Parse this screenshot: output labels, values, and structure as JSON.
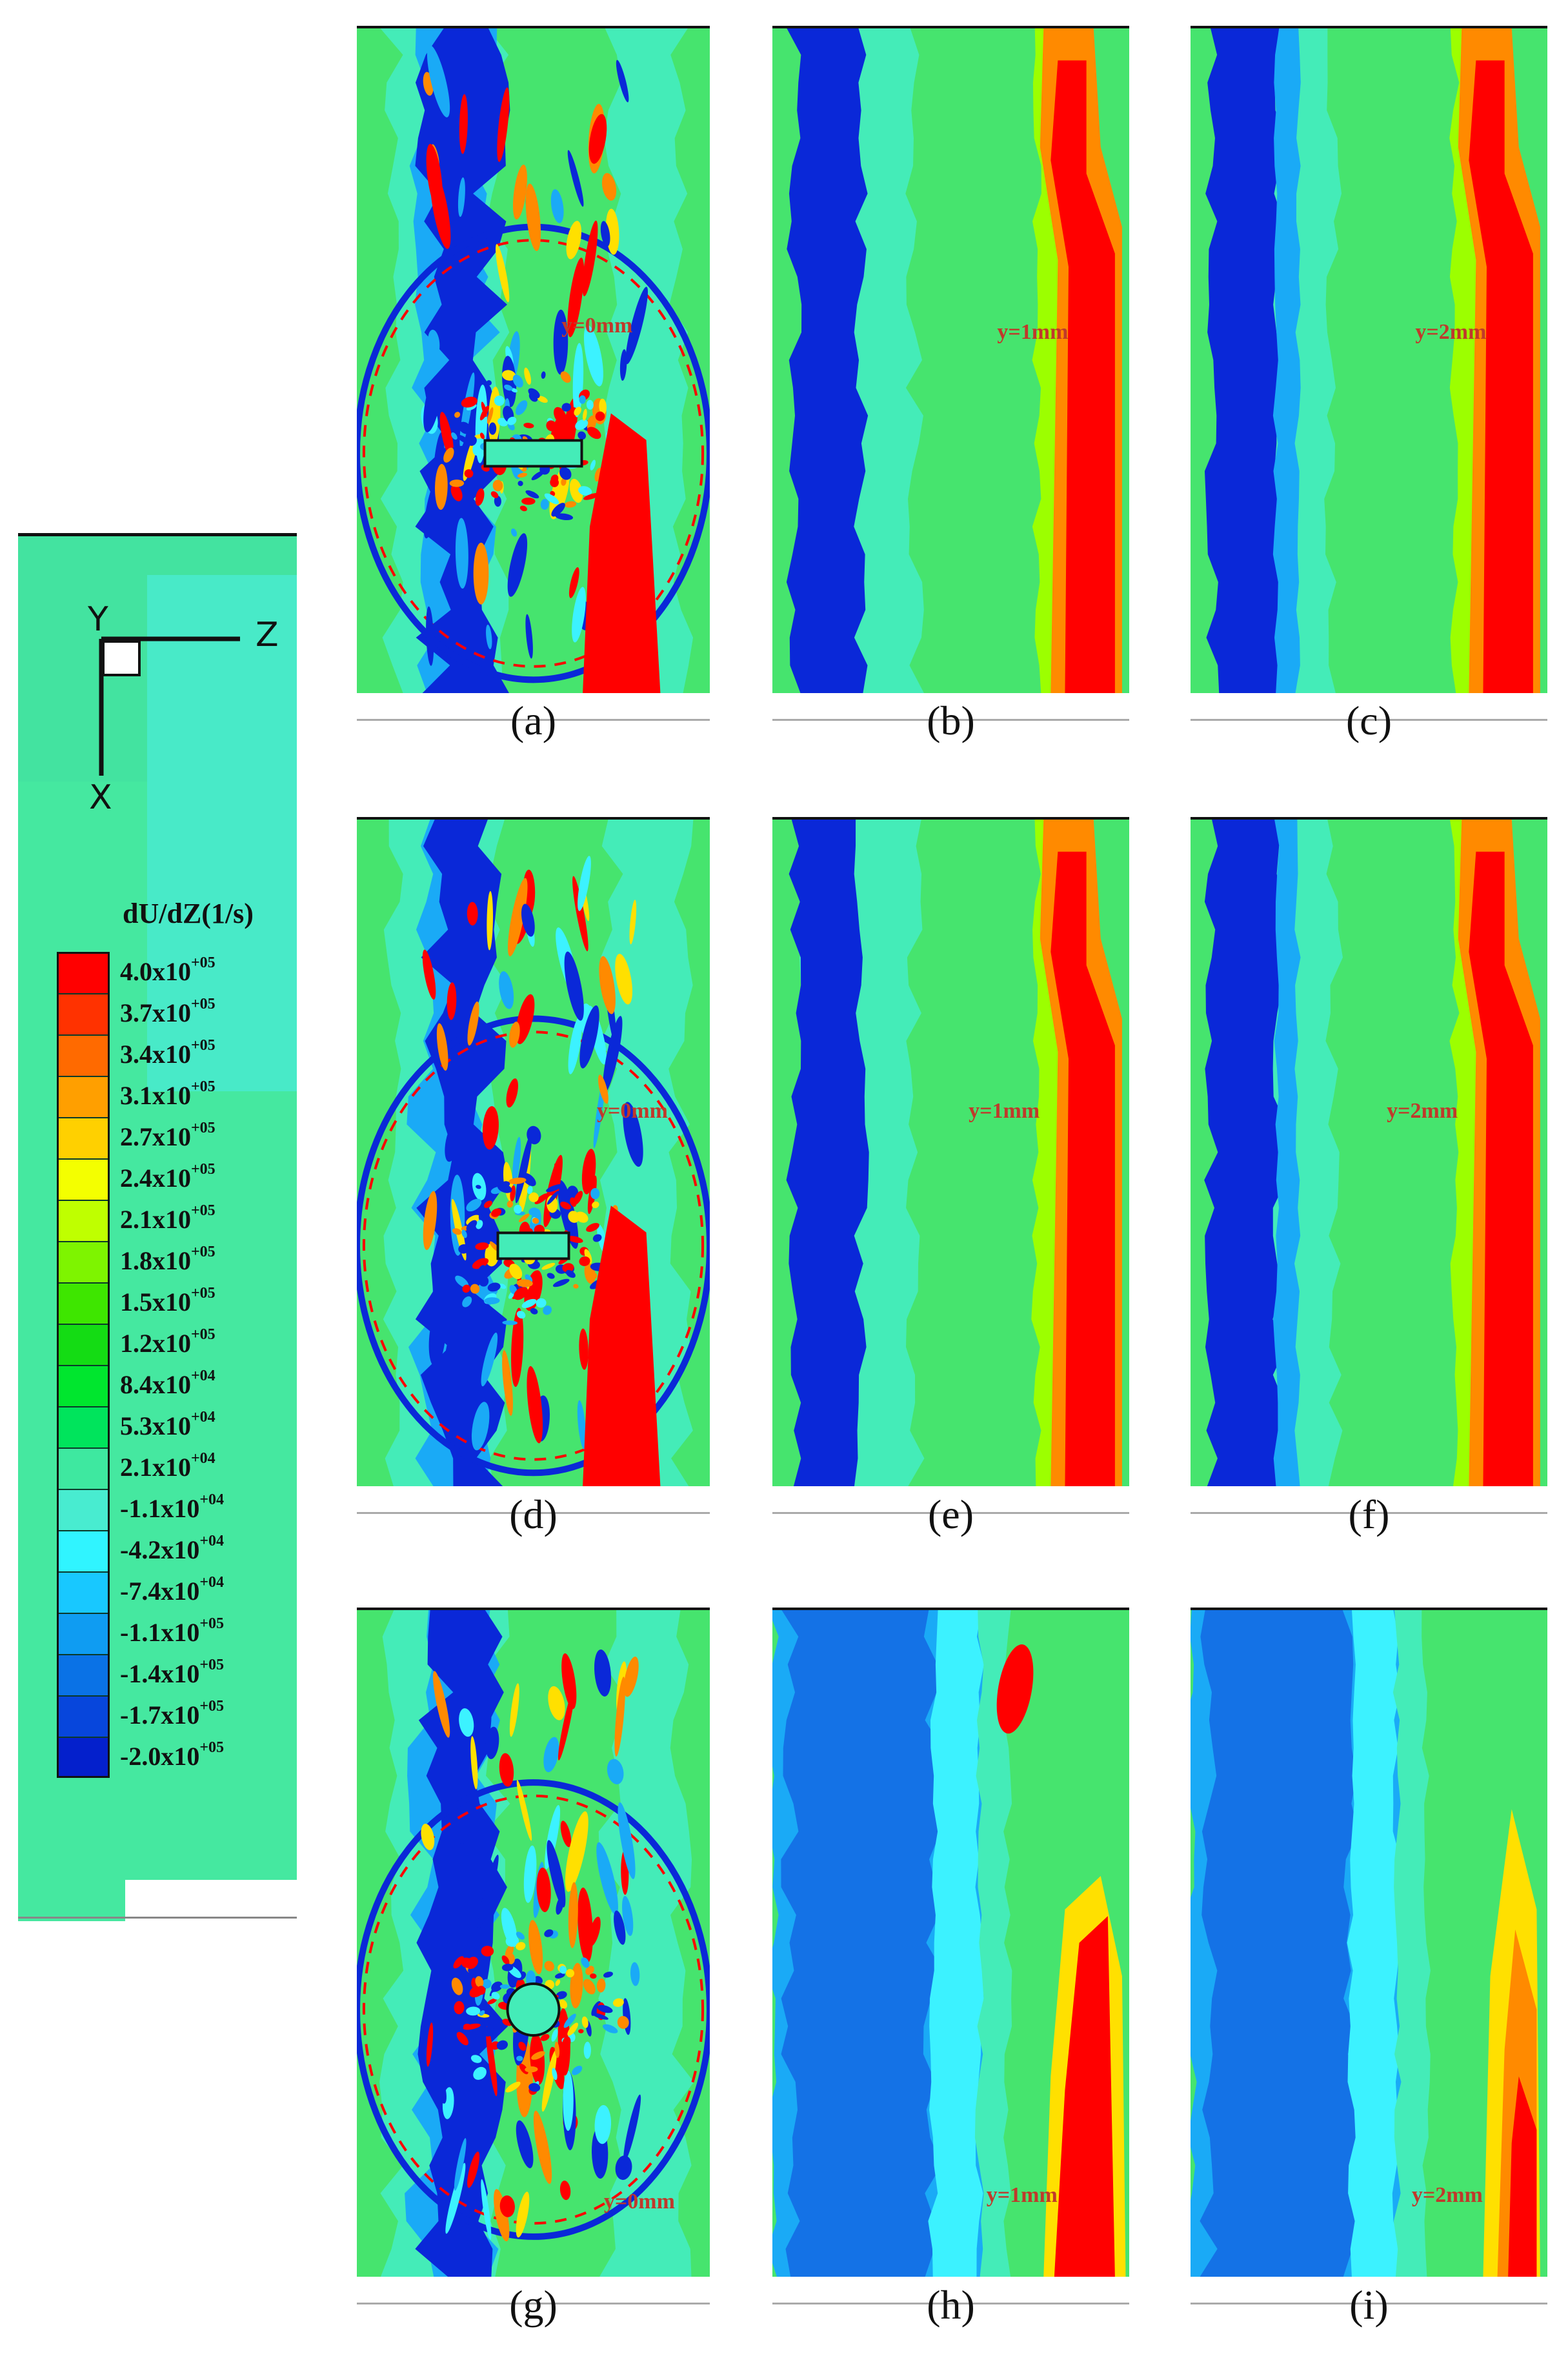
{
  "legend": {
    "title": "dU/dZ(1/s)",
    "axes": {
      "y": "Y",
      "z": "Z",
      "x": "X"
    },
    "entries": [
      {
        "label": "4.0x10",
        "exp": "+05",
        "color": "#ff0000"
      },
      {
        "label": "3.7x10",
        "exp": "+05",
        "color": "#ff3200"
      },
      {
        "label": "3.4x10",
        "exp": "+05",
        "color": "#ff6a00"
      },
      {
        "label": "3.1x10",
        "exp": "+05",
        "color": "#ff9f00"
      },
      {
        "label": "2.7x10",
        "exp": "+05",
        "color": "#ffd000"
      },
      {
        "label": "2.4x10",
        "exp": "+05",
        "color": "#f4ff00"
      },
      {
        "label": "2.1x10",
        "exp": "+05",
        "color": "#bfff00"
      },
      {
        "label": "1.8x10",
        "exp": "+05",
        "color": "#7ef400"
      },
      {
        "label": "1.5x10",
        "exp": "+05",
        "color": "#3ee600"
      },
      {
        "label": "1.2x10",
        "exp": "+05",
        "color": "#14dc14"
      },
      {
        "label": "8.4x10",
        "exp": "+04",
        "color": "#00e62e"
      },
      {
        "label": "5.3x10",
        "exp": "+04",
        "color": "#00e45c"
      },
      {
        "label": "2.1x10",
        "exp": "+04",
        "color": "#3ee8a0"
      },
      {
        "label": "-1.1x10",
        "exp": "+04",
        "color": "#48ecd0"
      },
      {
        "label": "-4.2x10",
        "exp": "+04",
        "color": "#30f4ff"
      },
      {
        "label": "-7.4x10",
        "exp": "+04",
        "color": "#18c8ff"
      },
      {
        "label": "-1.1x10",
        "exp": "+05",
        "color": "#0f9cf2"
      },
      {
        "label": "-1.4x10",
        "exp": "+05",
        "color": "#0a72e6"
      },
      {
        "label": "-1.7x10",
        "exp": "+05",
        "color": "#0746dc"
      },
      {
        "label": "-2.0x10",
        "exp": "+05",
        "color": "#0420cc"
      }
    ]
  },
  "panels": [
    {
      "id": "a",
      "caption": "(a)",
      "y_label": "y=0mm",
      "kind": "chaotic",
      "obstacle": "rect"
    },
    {
      "id": "b",
      "caption": "(b)",
      "y_label": "y=1mm",
      "kind": "bands"
    },
    {
      "id": "c",
      "caption": "(c)",
      "y_label": "y=2mm",
      "kind": "bands"
    },
    {
      "id": "d",
      "caption": "(d)",
      "y_label": "y=0mm",
      "kind": "chaotic",
      "obstacle": "rect"
    },
    {
      "id": "e",
      "caption": "(e)",
      "y_label": "y=1mm",
      "kind": "bands"
    },
    {
      "id": "f",
      "caption": "(f)",
      "y_label": "y=2mm",
      "kind": "bands"
    },
    {
      "id": "g",
      "caption": "(g)",
      "y_label": "y=0mm",
      "kind": "chaotic",
      "obstacle": "circle"
    },
    {
      "id": "h",
      "caption": "(h)",
      "y_label": "y=1mm",
      "kind": "soft"
    },
    {
      "id": "i",
      "caption": "(i)",
      "y_label": "y=2mm",
      "kind": "soft"
    }
  ]
}
